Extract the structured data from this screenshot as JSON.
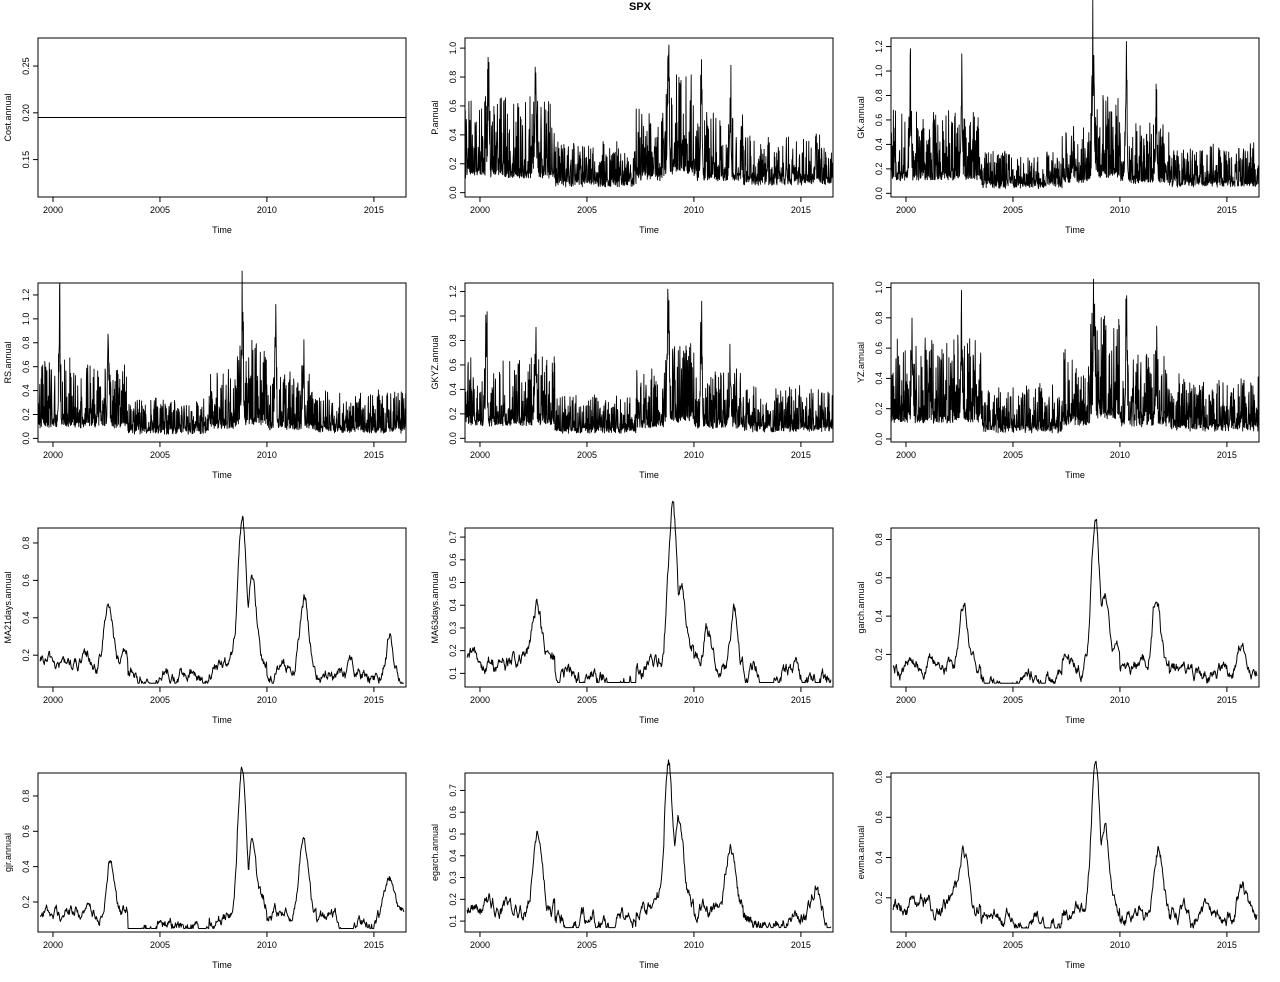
{
  "figure": {
    "title": "SPX"
  },
  "chart_data": [
    {
      "type": "line",
      "ylabel": "Cost.annual",
      "xlabel": "Time",
      "xlim": [
        1999.3,
        2016.5
      ],
      "ylim": [
        0.11,
        0.28
      ],
      "xticks": [
        2000,
        2005,
        2010,
        2015
      ],
      "yticks": [
        "0.15",
        "0.20",
        "0.25"
      ],
      "style": "flat",
      "level": 0.195,
      "base": 0.195,
      "x_range": [
        1999.3,
        2016.5
      ],
      "grid": false
    },
    {
      "type": "line",
      "ylabel": "P.annual",
      "xlabel": "Time",
      "xlim": [
        1999.3,
        2016.5
      ],
      "ylim": [
        -0.03,
        1.07
      ],
      "xticks": [
        2000,
        2005,
        2010,
        2015
      ],
      "yticks": [
        "0.0",
        "0.2",
        "0.4",
        "0.6",
        "0.8",
        "1.0"
      ],
      "style": "noisy",
      "base": 0.1,
      "x_range": [
        1999.3,
        2016.5
      ],
      "grid": false,
      "spikes": [
        [
          2000.4,
          0.7
        ],
        [
          2002.6,
          0.81
        ],
        [
          2008.8,
          1.04
        ],
        [
          2010.35,
          0.87
        ],
        [
          2011.7,
          0.61
        ]
      ]
    },
    {
      "type": "line",
      "ylabel": "GK.annual",
      "xlabel": "Time",
      "xlim": [
        1999.3,
        2016.5
      ],
      "ylim": [
        -0.03,
        1.27
      ],
      "xticks": [
        2000,
        2005,
        2010,
        2015
      ],
      "yticks": [
        "0.0",
        "0.2",
        "0.4",
        "0.6",
        "0.8",
        "1.0",
        "1.2"
      ],
      "style": "noisy",
      "base": 0.1,
      "x_range": [
        1999.3,
        2016.5
      ],
      "grid": false,
      "spikes": [
        [
          2000.2,
          0.84
        ],
        [
          2002.6,
          0.79
        ],
        [
          2008.75,
          1.23
        ],
        [
          2010.3,
          0.98
        ],
        [
          2011.7,
          0.55
        ]
      ]
    },
    {
      "type": "line",
      "ylabel": "RS.annual",
      "xlabel": "Time",
      "xlim": [
        1999.3,
        2016.5
      ],
      "ylim": [
        -0.03,
        1.3
      ],
      "xticks": [
        2000,
        2005,
        2010,
        2015
      ],
      "yticks": [
        "0.0",
        "0.2",
        "0.4",
        "0.6",
        "0.8",
        "1.0",
        "1.2"
      ],
      "style": "noisy",
      "base": 0.09,
      "x_range": [
        1999.3,
        2016.5
      ],
      "grid": false,
      "spikes": [
        [
          2000.3,
          0.94
        ],
        [
          2002.6,
          0.77
        ],
        [
          2008.85,
          1.27
        ],
        [
          2010.4,
          1.13
        ],
        [
          2011.7,
          0.55
        ]
      ]
    },
    {
      "type": "line",
      "ylabel": "GKYZ.annual",
      "xlabel": "Time",
      "xlim": [
        1999.3,
        2016.5
      ],
      "ylim": [
        -0.03,
        1.27
      ],
      "xticks": [
        2000,
        2005,
        2010,
        2015
      ],
      "yticks": [
        "0.0",
        "0.2",
        "0.4",
        "0.6",
        "0.8",
        "1.0",
        "1.2"
      ],
      "style": "noisy",
      "base": 0.1,
      "x_range": [
        1999.3,
        2016.5
      ],
      "grid": false,
      "spikes": [
        [
          2000.3,
          0.82
        ],
        [
          2002.6,
          0.77
        ],
        [
          2008.8,
          1.24
        ],
        [
          2010.35,
          0.98
        ],
        [
          2011.7,
          0.55
        ]
      ]
    },
    {
      "type": "line",
      "ylabel": "YZ.annual",
      "xlabel": "Time",
      "xlim": [
        1999.3,
        2016.5
      ],
      "ylim": [
        -0.02,
        1.03
      ],
      "xticks": [
        2000,
        2005,
        2010,
        2015
      ],
      "yticks": [
        "0.0",
        "0.2",
        "0.4",
        "0.6",
        "0.8",
        "1.0"
      ],
      "style": "noisy",
      "base": 0.1,
      "x_range": [
        1999.3,
        2016.5
      ],
      "grid": false,
      "spikes": [
        [
          2000.3,
          0.65
        ],
        [
          2002.6,
          0.67
        ],
        [
          2008.8,
          1.01
        ],
        [
          2010.3,
          0.82
        ],
        [
          2011.7,
          0.42
        ]
      ]
    },
    {
      "type": "line",
      "ylabel": "MA21days.annual",
      "xlabel": "Time",
      "xlim": [
        1999.3,
        2016.5
      ],
      "ylim": [
        0.03,
        0.88
      ],
      "xticks": [
        2000,
        2005,
        2010,
        2015
      ],
      "yticks": [
        "0.2",
        "0.4",
        "0.6",
        "0.8"
      ],
      "style": "smooth",
      "base": 0.11,
      "x_range": [
        1999.4,
        2016.4
      ],
      "grid": false,
      "spikes": [
        [
          2002.6,
          0.47
        ],
        [
          2008.85,
          0.85
        ],
        [
          2009.3,
          0.5
        ],
        [
          2011.75,
          0.49
        ],
        [
          2015.7,
          0.32
        ]
      ]
    },
    {
      "type": "line",
      "ylabel": "MA63days.annual",
      "xlabel": "Time",
      "xlim": [
        1999.3,
        2016.5
      ],
      "ylim": [
        0.04,
        0.74
      ],
      "xticks": [
        2000,
        2005,
        2010,
        2015
      ],
      "yticks": [
        "0.1",
        "0.2",
        "0.3",
        "0.4",
        "0.5",
        "0.6",
        "0.7"
      ],
      "style": "smooth",
      "base": 0.11,
      "x_range": [
        1999.4,
        2016.4
      ],
      "grid": false,
      "spikes": [
        [
          2002.7,
          0.37
        ],
        [
          2009.0,
          0.73
        ],
        [
          2009.4,
          0.41
        ],
        [
          2010.6,
          0.27
        ],
        [
          2011.9,
          0.36
        ]
      ]
    },
    {
      "type": "line",
      "ylabel": "garch.annual",
      "xlabel": "Time",
      "xlim": [
        1999.3,
        2016.5
      ],
      "ylim": [
        0.03,
        0.86
      ],
      "xticks": [
        2000,
        2005,
        2010,
        2015
      ],
      "yticks": [
        "0.2",
        "0.4",
        "0.6",
        "0.8"
      ],
      "style": "smooth",
      "base": 0.12,
      "x_range": [
        1999.4,
        2016.4
      ],
      "grid": false,
      "spikes": [
        [
          2002.7,
          0.46
        ],
        [
          2008.85,
          0.82
        ],
        [
          2009.3,
          0.48
        ],
        [
          2011.7,
          0.49
        ],
        [
          2015.7,
          0.31
        ]
      ]
    },
    {
      "type": "line",
      "ylabel": "gjr.annual",
      "xlabel": "Time",
      "xlim": [
        1999.3,
        2016.5
      ],
      "ylim": [
        0.03,
        0.93
      ],
      "xticks": [
        2000,
        2005,
        2010,
        2015
      ],
      "yticks": [
        "0.2",
        "0.4",
        "0.6",
        "0.8"
      ],
      "style": "smooth",
      "base": 0.11,
      "x_range": [
        1999.4,
        2016.4
      ],
      "grid": false,
      "spikes": [
        [
          2002.7,
          0.45
        ],
        [
          2008.85,
          0.91
        ],
        [
          2009.3,
          0.5
        ],
        [
          2011.7,
          0.58
        ],
        [
          2015.7,
          0.35
        ]
      ]
    },
    {
      "type": "line",
      "ylabel": "egarch.annual",
      "xlabel": "Time",
      "xlim": [
        1999.3,
        2016.5
      ],
      "ylim": [
        0.05,
        0.78
      ],
      "xticks": [
        2000,
        2005,
        2010,
        2015
      ],
      "yticks": [
        "0.1",
        "0.2",
        "0.3",
        "0.4",
        "0.5",
        "0.6",
        "0.7"
      ],
      "style": "smooth",
      "base": 0.13,
      "x_range": [
        1999.4,
        2016.4
      ],
      "grid": false,
      "spikes": [
        [
          2002.7,
          0.49
        ],
        [
          2008.8,
          0.77
        ],
        [
          2009.3,
          0.45
        ],
        [
          2011.7,
          0.42
        ],
        [
          2015.7,
          0.29
        ]
      ]
    },
    {
      "type": "line",
      "ylabel": "ewma.annual",
      "xlabel": "Time",
      "xlim": [
        1999.3,
        2016.5
      ],
      "ylim": [
        0.03,
        0.82
      ],
      "xticks": [
        2000,
        2005,
        2010,
        2015
      ],
      "yticks": [
        "0.2",
        "0.4",
        "0.6",
        "0.8"
      ],
      "style": "smooth",
      "base": 0.12,
      "x_range": [
        1999.4,
        2016.4
      ],
      "grid": false,
      "spikes": [
        [
          2002.7,
          0.41
        ],
        [
          2008.85,
          0.79
        ],
        [
          2009.3,
          0.46
        ],
        [
          2011.8,
          0.44
        ],
        [
          2015.7,
          0.28
        ]
      ]
    }
  ]
}
